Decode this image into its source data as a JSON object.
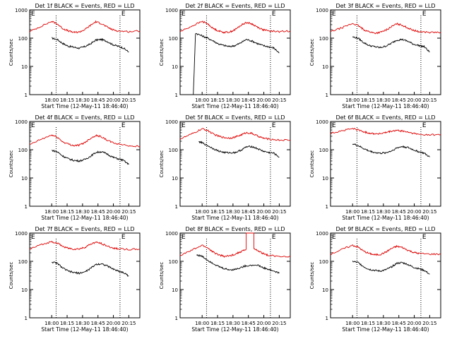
{
  "colors": {
    "events": "#000000",
    "lld": "#dd0000",
    "axis": "#000000"
  },
  "shared": {
    "xlabel": "Start Time (12-May-11 18:46:40)",
    "ylabel": "Counts/sec",
    "xticks": [
      "18:00",
      "18:15",
      "18:30",
      "18:45",
      "20:00",
      "20:15"
    ],
    "yticks": [
      "1",
      "10",
      "100",
      "1000"
    ],
    "corner_marks": [
      "E",
      "E"
    ]
  },
  "chart_data": [
    {
      "type": "line",
      "title": "Det 1f BLACK = Events, RED = LLD",
      "scale_y": "log",
      "ylim": [
        1,
        1000
      ],
      "xlim": [
        0,
        1
      ],
      "series": [
        {
          "name": "Events",
          "color": "#000000",
          "x": [
            0.2,
            0.25,
            0.3,
            0.35,
            0.4,
            0.45,
            0.5,
            0.55,
            0.6,
            0.65,
            0.7,
            0.75,
            0.8,
            0.85,
            0.9
          ],
          "y": [
            100,
            90,
            65,
            52,
            48,
            44,
            50,
            62,
            85,
            90,
            78,
            60,
            52,
            45,
            32
          ]
        },
        {
          "name": "LLD",
          "color": "#dd0000",
          "x": [
            0,
            0.1,
            0.2,
            0.25,
            0.3,
            0.35,
            0.4,
            0.45,
            0.5,
            0.55,
            0.6,
            0.65,
            0.7,
            0.75,
            0.8,
            0.9,
            1
          ],
          "y": [
            170,
            260,
            390,
            320,
            220,
            180,
            160,
            165,
            200,
            280,
            380,
            330,
            250,
            200,
            180,
            170,
            180
          ]
        }
      ]
    },
    {
      "type": "line",
      "title": "Det 2f BLACK = Events, RED = LLD",
      "scale_y": "log",
      "ylim": [
        1,
        1000
      ],
      "xlim": [
        0,
        1
      ],
      "series": [
        {
          "name": "Events",
          "color": "#000000",
          "x": [
            0.12,
            0.12,
            0.14,
            0.2,
            0.25,
            0.3,
            0.35,
            0.4,
            0.45,
            0.5,
            0.55,
            0.6,
            0.65,
            0.7,
            0.75,
            0.8,
            0.85,
            0.9
          ],
          "y": [
            1,
            1,
            150,
            120,
            100,
            80,
            62,
            55,
            50,
            55,
            68,
            90,
            80,
            65,
            55,
            50,
            45,
            30
          ]
        },
        {
          "name": "LLD",
          "color": "#dd0000",
          "x": [
            0,
            0.1,
            0.2,
            0.25,
            0.3,
            0.35,
            0.4,
            0.45,
            0.5,
            0.55,
            0.6,
            0.65,
            0.7,
            0.75,
            0.8,
            0.9,
            1
          ],
          "y": [
            170,
            260,
            390,
            320,
            220,
            180,
            160,
            165,
            200,
            280,
            360,
            320,
            250,
            200,
            180,
            170,
            180
          ]
        }
      ]
    },
    {
      "type": "line",
      "title": "Det 3f BLACK = Events, RED = LLD",
      "scale_y": "log",
      "ylim": [
        1,
        1000
      ],
      "xlim": [
        0,
        1
      ],
      "series": [
        {
          "name": "Events",
          "color": "#000000",
          "x": [
            0.2,
            0.25,
            0.3,
            0.35,
            0.4,
            0.45,
            0.5,
            0.55,
            0.6,
            0.65,
            0.7,
            0.75,
            0.8,
            0.85,
            0.9
          ],
          "y": [
            110,
            100,
            70,
            55,
            50,
            46,
            52,
            65,
            85,
            90,
            78,
            62,
            55,
            50,
            32
          ]
        },
        {
          "name": "LLD",
          "color": "#dd0000",
          "x": [
            0,
            0.1,
            0.2,
            0.25,
            0.3,
            0.35,
            0.4,
            0.45,
            0.5,
            0.55,
            0.6,
            0.65,
            0.7,
            0.75,
            0.8,
            0.9,
            1
          ],
          "y": [
            170,
            230,
            330,
            280,
            200,
            170,
            150,
            160,
            190,
            250,
            320,
            290,
            230,
            190,
            170,
            160,
            160
          ]
        }
      ]
    },
    {
      "type": "line",
      "title": "Det 4f BLACK = Events, RED = LLD",
      "scale_y": "log",
      "ylim": [
        1,
        1000
      ],
      "xlim": [
        0,
        1
      ],
      "series": [
        {
          "name": "Events",
          "color": "#000000",
          "x": [
            0.2,
            0.25,
            0.3,
            0.35,
            0.4,
            0.45,
            0.5,
            0.55,
            0.6,
            0.65,
            0.7,
            0.75,
            0.8,
            0.85,
            0.9
          ],
          "y": [
            95,
            85,
            60,
            48,
            42,
            40,
            45,
            58,
            80,
            85,
            72,
            55,
            48,
            42,
            30
          ]
        },
        {
          "name": "LLD",
          "color": "#dd0000",
          "x": [
            0,
            0.1,
            0.2,
            0.25,
            0.3,
            0.35,
            0.4,
            0.45,
            0.5,
            0.55,
            0.6,
            0.65,
            0.7,
            0.75,
            0.8,
            0.9,
            1
          ],
          "y": [
            150,
            230,
            330,
            280,
            190,
            160,
            140,
            145,
            180,
            250,
            320,
            290,
            220,
            180,
            160,
            140,
            130
          ]
        }
      ]
    },
    {
      "type": "line",
      "title": "Det 5f BLACK = Events, RED = LLD",
      "scale_y": "log",
      "ylim": [
        1,
        1000
      ],
      "xlim": [
        0,
        1
      ],
      "series": [
        {
          "name": "Events",
          "color": "#000000",
          "x": [
            0.17,
            0.2,
            0.25,
            0.3,
            0.35,
            0.4,
            0.45,
            0.5,
            0.55,
            0.6,
            0.65,
            0.7,
            0.75,
            0.8,
            0.85,
            0.9
          ],
          "y": [
            190,
            175,
            140,
            110,
            90,
            80,
            78,
            80,
            95,
            125,
            130,
            110,
            90,
            80,
            75,
            55
          ]
        },
        {
          "name": "LLD",
          "color": "#dd0000",
          "x": [
            0,
            0.1,
            0.2,
            0.25,
            0.3,
            0.35,
            0.4,
            0.45,
            0.5,
            0.55,
            0.6,
            0.65,
            0.7,
            0.75,
            0.8,
            0.9,
            1
          ],
          "y": [
            240,
            350,
            550,
            480,
            360,
            300,
            270,
            260,
            280,
            330,
            400,
            380,
            310,
            260,
            240,
            220,
            220
          ]
        }
      ]
    },
    {
      "type": "line",
      "title": "Det 6f BLACK = Events, RED = LLD",
      "scale_y": "log",
      "ylim": [
        1,
        1000
      ],
      "xlim": [
        0,
        1
      ],
      "series": [
        {
          "name": "Events",
          "color": "#000000",
          "x": [
            0.2,
            0.25,
            0.3,
            0.35,
            0.4,
            0.45,
            0.5,
            0.55,
            0.6,
            0.65,
            0.7,
            0.75,
            0.8,
            0.85,
            0.9
          ],
          "y": [
            160,
            140,
            110,
            90,
            80,
            75,
            78,
            90,
            115,
            130,
            120,
            100,
            85,
            75,
            55
          ]
        },
        {
          "name": "LLD",
          "color": "#dd0000",
          "x": [
            0,
            0.1,
            0.2,
            0.25,
            0.3,
            0.35,
            0.4,
            0.45,
            0.5,
            0.55,
            0.6,
            0.65,
            0.7,
            0.75,
            0.8,
            0.9,
            1
          ],
          "y": [
            380,
            470,
            560,
            510,
            430,
            390,
            370,
            370,
            400,
            450,
            480,
            460,
            420,
            380,
            350,
            340,
            340
          ]
        }
      ]
    },
    {
      "type": "line",
      "title": "Det 7f BLACK = Events, RED = LLD",
      "scale_y": "log",
      "ylim": [
        1,
        1000
      ],
      "xlim": [
        0,
        1
      ],
      "series": [
        {
          "name": "Events",
          "color": "#000000",
          "x": [
            0.2,
            0.25,
            0.3,
            0.35,
            0.4,
            0.45,
            0.5,
            0.55,
            0.6,
            0.65,
            0.7,
            0.75,
            0.8,
            0.85,
            0.9
          ],
          "y": [
            95,
            85,
            58,
            45,
            40,
            38,
            42,
            55,
            78,
            82,
            70,
            55,
            46,
            40,
            30
          ]
        },
        {
          "name": "LLD",
          "color": "#dd0000",
          "x": [
            0,
            0.1,
            0.2,
            0.25,
            0.3,
            0.35,
            0.4,
            0.45,
            0.5,
            0.55,
            0.6,
            0.65,
            0.7,
            0.75,
            0.8,
            0.9,
            1
          ],
          "y": [
            270,
            380,
            500,
            440,
            340,
            290,
            270,
            275,
            310,
            400,
            470,
            430,
            350,
            300,
            280,
            260,
            270
          ]
        }
      ]
    },
    {
      "type": "line",
      "title": "Det 8f BLACK = Events, RED = LLD",
      "scale_y": "log",
      "ylim": [
        1,
        1000
      ],
      "xlim": [
        0,
        1
      ],
      "series": [
        {
          "name": "Events",
          "color": "#000000",
          "x": [
            0.15,
            0.2,
            0.25,
            0.3,
            0.35,
            0.4,
            0.45,
            0.5,
            0.55,
            0.6,
            0.7,
            0.75,
            0.8,
            0.85,
            0.9
          ],
          "y": [
            170,
            150,
            110,
            85,
            65,
            55,
            50,
            52,
            60,
            70,
            75,
            60,
            52,
            45,
            38
          ]
        },
        {
          "name": "LLD",
          "color": "#dd0000",
          "x": [
            0,
            0.1,
            0.2,
            0.25,
            0.3,
            0.35,
            0.4,
            0.45,
            0.5,
            0.55,
            0.6,
            0.6,
            0.61,
            0.67,
            0.67,
            0.7,
            0.75,
            0.8,
            0.9,
            1
          ],
          "y": [
            160,
            240,
            370,
            300,
            210,
            170,
            150,
            155,
            180,
            220,
            260,
            1000,
            1000,
            1000,
            290,
            240,
            190,
            165,
            150,
            150
          ]
        }
      ]
    },
    {
      "type": "line",
      "title": "Det 9f BLACK = Events, RED = LLD",
      "scale_y": "log",
      "ylim": [
        1,
        1000
      ],
      "xlim": [
        0,
        1
      ],
      "series": [
        {
          "name": "Events",
          "color": "#000000",
          "x": [
            0.2,
            0.25,
            0.3,
            0.35,
            0.4,
            0.45,
            0.5,
            0.55,
            0.6,
            0.65,
            0.7,
            0.75,
            0.8,
            0.85,
            0.9
          ],
          "y": [
            100,
            90,
            65,
            52,
            48,
            45,
            50,
            62,
            85,
            90,
            78,
            62,
            55,
            48,
            35
          ]
        },
        {
          "name": "LLD",
          "color": "#dd0000",
          "x": [
            0,
            0.1,
            0.2,
            0.25,
            0.3,
            0.35,
            0.4,
            0.45,
            0.5,
            0.55,
            0.6,
            0.65,
            0.7,
            0.75,
            0.8,
            0.9,
            1
          ],
          "y": [
            180,
            260,
            370,
            320,
            230,
            190,
            170,
            175,
            210,
            280,
            340,
            310,
            250,
            210,
            190,
            180,
            180
          ]
        }
      ]
    }
  ]
}
